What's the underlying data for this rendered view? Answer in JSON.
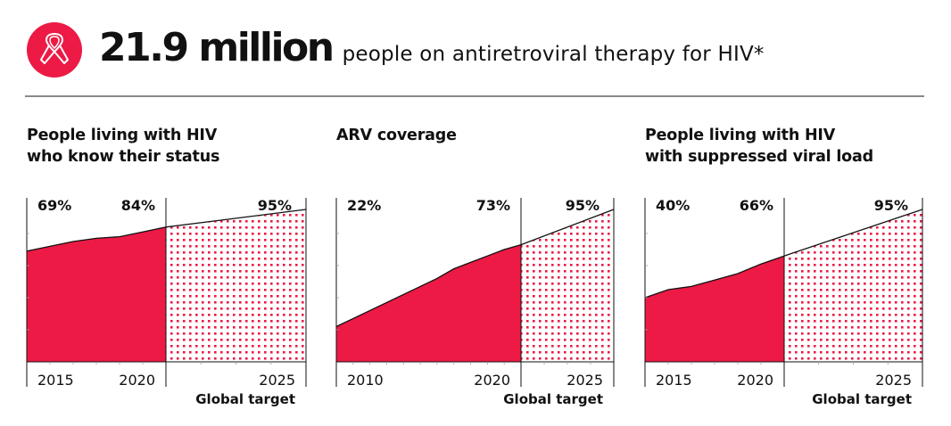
{
  "header": {
    "icon": "awareness-ribbon-icon",
    "headline_number": "21.9 million",
    "headline_text": "people on antiretroviral therapy for HIV*"
  },
  "colors": {
    "accent": "#EC1A45",
    "axis": "#111111",
    "rule": "#8A8A8A"
  },
  "panels": [
    {
      "title_line1": "People living with HIV",
      "title_line2": "who know their status"
    },
    {
      "title_line1": "ARV coverage",
      "title_line2": ""
    },
    {
      "title_line1": "People living with HIV",
      "title_line2": "with suppressed viral load"
    }
  ],
  "chart_data": [
    {
      "type": "area",
      "title": "People living with HIV who know their status",
      "unit": "%",
      "ylim": [
        0,
        100
      ],
      "x_start": 2015,
      "x_end_observed": 2021,
      "x_target": 2025,
      "observed": {
        "x": [
          2015,
          2016,
          2017,
          2018,
          2019,
          2020,
          2021
        ],
        "y": [
          69,
          72,
          75,
          77,
          78,
          81,
          84
        ]
      },
      "target": {
        "x": [
          2021,
          2025
        ],
        "y": [
          84,
          95
        ]
      },
      "value_labels": [
        "69%",
        "84%",
        "95%"
      ],
      "tick_labels": [
        "2015",
        "2020",
        "2025"
      ],
      "target_label": "Global target"
    },
    {
      "type": "area",
      "title": "ARV coverage",
      "unit": "%",
      "ylim": [
        0,
        100
      ],
      "x_start": 2010,
      "x_end_observed": 2021,
      "x_target": 2025,
      "observed": {
        "x": [
          2010,
          2011,
          2012,
          2013,
          2014,
          2015,
          2016,
          2017,
          2018,
          2019,
          2020,
          2021
        ],
        "y": [
          22,
          27,
          32,
          37,
          42,
          47,
          52,
          58,
          62,
          66,
          70,
          73
        ]
      },
      "target": {
        "x": [
          2021,
          2025
        ],
        "y": [
          73,
          95
        ]
      },
      "value_labels": [
        "22%",
        "73%",
        "95%"
      ],
      "tick_labels": [
        "2010",
        "2020",
        "2025"
      ],
      "target_label": "Global target"
    },
    {
      "type": "area",
      "title": "People living with HIV with suppressed viral load",
      "unit": "%",
      "ylim": [
        0,
        100
      ],
      "x_start": 2015,
      "x_end_observed": 2021,
      "x_target": 2025,
      "observed": {
        "x": [
          2015,
          2016,
          2017,
          2018,
          2019,
          2020,
          2021
        ],
        "y": [
          40,
          45,
          47,
          51,
          55,
          61,
          66
        ]
      },
      "target": {
        "x": [
          2021,
          2025
        ],
        "y": [
          66,
          95
        ]
      },
      "value_labels": [
        "40%",
        "66%",
        "95%"
      ],
      "tick_labels": [
        "2015",
        "2020",
        "2025"
      ],
      "target_label": "Global target"
    }
  ]
}
